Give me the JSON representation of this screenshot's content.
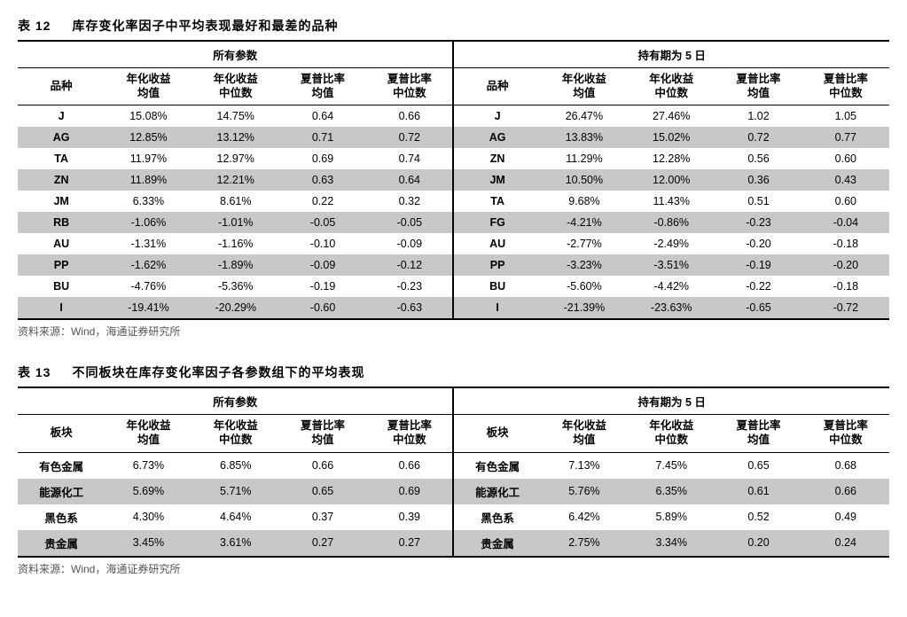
{
  "tables": [
    {
      "number": "表 12",
      "title": "库存变化率因子中平均表现最好和最差的品种",
      "group_headers": [
        "所有参数",
        "持有期为 5 日"
      ],
      "label_header": "品种",
      "col_headers": [
        "年化收益\n均值",
        "年化收益\n中位数",
        "夏普比率\n均值",
        "夏普比率\n中位数"
      ],
      "rows": [
        {
          "left": [
            "J",
            "15.08%",
            "14.75%",
            "0.64",
            "0.66"
          ],
          "right": [
            "J",
            "26.47%",
            "27.46%",
            "1.02",
            "1.05"
          ]
        },
        {
          "left": [
            "AG",
            "12.85%",
            "13.12%",
            "0.71",
            "0.72"
          ],
          "right": [
            "AG",
            "13.83%",
            "15.02%",
            "0.72",
            "0.77"
          ]
        },
        {
          "left": [
            "TA",
            "11.97%",
            "12.97%",
            "0.69",
            "0.74"
          ],
          "right": [
            "ZN",
            "11.29%",
            "12.28%",
            "0.56",
            "0.60"
          ]
        },
        {
          "left": [
            "ZN",
            "11.89%",
            "12.21%",
            "0.63",
            "0.64"
          ],
          "right": [
            "JM",
            "10.50%",
            "12.00%",
            "0.36",
            "0.43"
          ]
        },
        {
          "left": [
            "JM",
            "6.33%",
            "8.61%",
            "0.22",
            "0.32"
          ],
          "right": [
            "TA",
            "9.68%",
            "11.43%",
            "0.51",
            "0.60"
          ]
        },
        {
          "left": [
            "RB",
            "-1.06%",
            "-1.01%",
            "-0.05",
            "-0.05"
          ],
          "right": [
            "FG",
            "-4.21%",
            "-0.86%",
            "-0.23",
            "-0.04"
          ]
        },
        {
          "left": [
            "AU",
            "-1.31%",
            "-1.16%",
            "-0.10",
            "-0.09"
          ],
          "right": [
            "AU",
            "-2.77%",
            "-2.49%",
            "-0.20",
            "-0.18"
          ]
        },
        {
          "left": [
            "PP",
            "-1.62%",
            "-1.89%",
            "-0.09",
            "-0.12"
          ],
          "right": [
            "PP",
            "-3.23%",
            "-3.51%",
            "-0.19",
            "-0.20"
          ]
        },
        {
          "left": [
            "BU",
            "-4.76%",
            "-5.36%",
            "-0.19",
            "-0.23"
          ],
          "right": [
            "BU",
            "-5.60%",
            "-4.42%",
            "-0.22",
            "-0.18"
          ]
        },
        {
          "left": [
            "I",
            "-19.41%",
            "-20.29%",
            "-0.60",
            "-0.63"
          ],
          "right": [
            "I",
            "-21.39%",
            "-23.63%",
            "-0.65",
            "-0.72"
          ]
        }
      ],
      "source": "资料来源：Wind，海通证券研究所"
    },
    {
      "number": "表 13",
      "title": "不同板块在库存变化率因子各参数组下的平均表现",
      "group_headers": [
        "所有参数",
        "持有期为 5 日"
      ],
      "label_header": "板块",
      "col_headers": [
        "年化收益\n均值",
        "年化收益\n中位数",
        "夏普比率\n均值",
        "夏普比率\n中位数"
      ],
      "rows": [
        {
          "left": [
            "有色金属",
            "6.73%",
            "6.85%",
            "0.66",
            "0.66"
          ],
          "right": [
            "有色金属",
            "7.13%",
            "7.45%",
            "0.65",
            "0.68"
          ]
        },
        {
          "left": [
            "能源化工",
            "5.69%",
            "5.71%",
            "0.65",
            "0.69"
          ],
          "right": [
            "能源化工",
            "5.76%",
            "6.35%",
            "0.61",
            "0.66"
          ]
        },
        {
          "left": [
            "黑色系",
            "4.30%",
            "4.64%",
            "0.37",
            "0.39"
          ],
          "right": [
            "黑色系",
            "6.42%",
            "5.89%",
            "0.52",
            "0.49"
          ]
        },
        {
          "left": [
            "贵金属",
            "3.45%",
            "3.61%",
            "0.27",
            "0.27"
          ],
          "right": [
            "贵金属",
            "2.75%",
            "3.34%",
            "0.20",
            "0.24"
          ]
        }
      ],
      "source": "资料来源：Wind，海通证券研究所"
    }
  ],
  "style": {
    "zebra_color": "#c8c8c8",
    "border_color": "#000000"
  }
}
